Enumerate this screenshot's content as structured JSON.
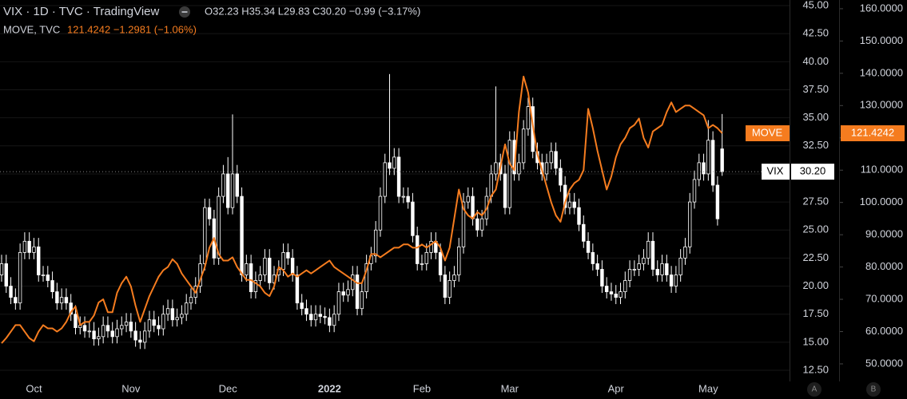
{
  "header": {
    "title": "VIX · 1D · TVC · TradingView",
    "ohlc": "O32.23 H35.34 L29.83 C30.20 −0.99 (−3.17%)",
    "second_name": "MOVE, TVC",
    "second_values": "121.4242 −1.2981 (−1.06%)"
  },
  "chart_data": {
    "type": "candlestick",
    "categories": [
      null,
      null,
      null,
      null,
      null,
      null,
      null,
      "Oct",
      null,
      null,
      null,
      null,
      null,
      null,
      null,
      null,
      null,
      null,
      null,
      null,
      null,
      null,
      null,
      null,
      null,
      null,
      null,
      null,
      "Nov",
      null,
      null,
      null,
      null,
      null,
      null,
      null,
      null,
      null,
      null,
      null,
      null,
      null,
      null,
      null,
      null,
      null,
      null,
      null,
      null,
      "Dec",
      null,
      null,
      null,
      null,
      null,
      null,
      null,
      null,
      null,
      null,
      null,
      null,
      null,
      null,
      null,
      null,
      null,
      null,
      null,
      null,
      null,
      "2022",
      null,
      null,
      null,
      null,
      null,
      null,
      null,
      null,
      null,
      null,
      null,
      null,
      null,
      null,
      null,
      null,
      null,
      null,
      null,
      "Feb",
      null,
      null,
      null,
      null,
      null,
      null,
      null,
      null,
      null,
      null,
      null,
      null,
      null,
      null,
      null,
      null,
      null,
      null,
      "Mar",
      null,
      null,
      null,
      null,
      null,
      null,
      null,
      null,
      null,
      null,
      null,
      null,
      null,
      null,
      null,
      null,
      null,
      null,
      null,
      null,
      null,
      null,
      "Apr",
      null,
      null,
      null,
      null,
      null,
      null,
      null,
      null,
      null,
      null,
      null,
      null,
      null,
      null,
      null,
      null,
      null,
      null,
      null,
      "May",
      null,
      null,
      null
    ],
    "series": [
      {
        "name": "VIX",
        "type": "candlestick",
        "color": "#ffffff",
        "last_label": "30.20",
        "open": [
          21,
          22,
          20,
          19,
          18.5,
          23,
          24,
          23,
          23.5,
          21,
          21,
          20.5,
          19.5,
          18.5,
          19,
          18.5,
          17.5,
          16.3,
          16.5,
          16,
          16,
          15.3,
          15.5,
          16.5,
          16,
          15.5,
          16.2,
          16.5,
          16.8,
          16,
          15.2,
          15,
          16,
          17,
          16.5,
          16.2,
          17.5,
          18,
          17,
          17.2,
          17.5,
          18.5,
          19,
          20,
          22,
          27,
          26,
          22.5,
          28,
          30,
          27,
          30,
          28,
          21,
          22,
          19.5,
          20.5,
          21,
          22.5,
          20.3,
          21,
          21.5,
          23,
          22.5,
          21,
          18.5,
          18,
          17.5,
          17,
          17.5,
          17.3,
          17.2,
          16.5,
          17.5,
          19.5,
          19.2,
          19.7,
          21,
          18,
          19.5,
          22,
          22.7,
          25,
          28,
          31,
          30.5,
          31.5,
          28,
          28,
          27.5,
          24.5,
          22,
          22,
          23,
          24,
          23,
          21,
          19,
          20.5,
          21,
          23.5,
          27.5,
          28,
          26,
          25,
          26,
          28,
          30,
          31,
          30,
          27,
          33,
          30,
          31,
          34,
          36,
          32,
          31,
          30,
          31,
          32,
          30.5,
          29,
          27,
          27.5,
          27,
          25.5,
          24,
          23,
          22,
          21.5,
          20,
          19.5,
          19.3,
          19,
          19.5,
          20.5,
          21.5,
          21.5,
          22,
          22.5,
          24,
          21.5,
          21,
          22,
          21,
          20,
          21,
          22.5,
          23.5,
          27.5,
          29.5,
          31,
          30,
          33,
          29,
          32.23
        ],
        "high": [
          22.8,
          22.8,
          20.8,
          19.8,
          23.8,
          24.8,
          24.8,
          24.3,
          24.3,
          21.8,
          21.8,
          21.3,
          20.3,
          19.8,
          19.8,
          19.3,
          18.3,
          17.3,
          17.3,
          16.8,
          16.8,
          16.3,
          17.3,
          17.3,
          16.8,
          17,
          17.3,
          17.6,
          17.6,
          16.8,
          16,
          16.8,
          17.8,
          17.8,
          17.3,
          18.3,
          18.8,
          18.8,
          18,
          18.3,
          19.3,
          19.8,
          20.8,
          22.8,
          27.8,
          27.8,
          26.8,
          28.8,
          30.8,
          31.5,
          35.3,
          30.8,
          28.8,
          22.8,
          22.8,
          21.3,
          21.8,
          23.3,
          23.3,
          21.8,
          22.3,
          23.8,
          23.8,
          23.3,
          21.8,
          19.3,
          18.8,
          18.3,
          18.3,
          18.3,
          18.1,
          18,
          18.3,
          20.3,
          20.3,
          20.5,
          21.8,
          21.8,
          20.3,
          22.8,
          23.5,
          25.8,
          28.8,
          31.8,
          38.9,
          32.3,
          32.3,
          28.8,
          28.8,
          28.3,
          25.3,
          22.8,
          23.8,
          24.8,
          24.8,
          23.8,
          21.8,
          21.3,
          21.8,
          24.3,
          28.3,
          28.8,
          28.8,
          26.8,
          26.8,
          28.8,
          30.8,
          37.8,
          31.8,
          30.8,
          33.8,
          33.8,
          31.8,
          34.8,
          36.8,
          36.8,
          32.8,
          31.8,
          31.8,
          32.8,
          32.8,
          31.3,
          29.8,
          28.3,
          28.3,
          27.8,
          26.3,
          24.8,
          23.8,
          22.8,
          22.3,
          20.8,
          20.3,
          20.1,
          20.3,
          21.3,
          22.3,
          22.3,
          22.8,
          23.3,
          24.8,
          24.8,
          22.3,
          22.8,
          22.8,
          21.8,
          21.8,
          23.3,
          24.3,
          28.3,
          30.3,
          31.8,
          31.8,
          34.8,
          33.8,
          29.8,
          35.34
        ],
        "low": [
          20.4,
          19.4,
          18.4,
          17.9,
          17.9,
          22.4,
          22.4,
          22.4,
          20.4,
          20.4,
          19.9,
          18.9,
          17.9,
          17.9,
          17.9,
          16.9,
          15.7,
          15.7,
          15.4,
          15.4,
          14.7,
          14.7,
          14.9,
          15.4,
          14.9,
          14.9,
          15.6,
          15.9,
          15.4,
          14.6,
          14.4,
          14.4,
          15.4,
          15.9,
          15.6,
          15.6,
          16.9,
          16.4,
          16.4,
          16.6,
          16.9,
          17.9,
          18.4,
          19.4,
          21.4,
          25.4,
          21.9,
          21.9,
          27.4,
          26.4,
          26.4,
          27.4,
          20.4,
          20.4,
          18.9,
          18.9,
          19.9,
          20.4,
          19.7,
          19.7,
          20.4,
          20.9,
          21.9,
          20.4,
          17.9,
          17.4,
          16.9,
          16.4,
          16.4,
          16.7,
          16.6,
          15.9,
          15.9,
          16.9,
          18.6,
          18.6,
          19.1,
          17.4,
          17.4,
          18.9,
          21.4,
          22.1,
          24.4,
          27.4,
          29.9,
          29.9,
          27.4,
          27.4,
          26.9,
          23.9,
          21.4,
          21.4,
          21.4,
          22.4,
          22.4,
          20.4,
          18.4,
          18.4,
          19.9,
          20.4,
          22.9,
          26.9,
          25.4,
          24.4,
          24.4,
          25.4,
          27.4,
          29.4,
          29.4,
          26.4,
          26.4,
          29.4,
          29.4,
          30.4,
          33.4,
          31.4,
          30.4,
          29.4,
          29.4,
          30.4,
          29.9,
          28.4,
          26.4,
          26.4,
          26.4,
          24.9,
          23.4,
          22.4,
          21.4,
          20.9,
          19.4,
          18.9,
          18.7,
          18.4,
          18.4,
          18.9,
          19.9,
          20.9,
          20.9,
          21.4,
          21.9,
          20.9,
          20.4,
          20.4,
          20.4,
          19.4,
          19.4,
          20.4,
          21.9,
          22.9,
          26.9,
          28.9,
          29.4,
          29.4,
          28.4,
          25.4,
          29.83
        ],
        "close": [
          22,
          20,
          19,
          18.5,
          23,
          24,
          23,
          23.5,
          21,
          21,
          20.5,
          19.5,
          18.5,
          19,
          18.5,
          17.5,
          16.3,
          16.5,
          16,
          16,
          15.3,
          15.5,
          16.5,
          16,
          15.5,
          16.2,
          16.5,
          16.8,
          16,
          15.2,
          15,
          16,
          17,
          16.5,
          16.2,
          17.5,
          18,
          17,
          17.2,
          17.5,
          18.5,
          19,
          20,
          22,
          27,
          26,
          22.5,
          28,
          30,
          27,
          30,
          28,
          21,
          22,
          19.5,
          20.5,
          21,
          22.5,
          20.3,
          21,
          21.5,
          23,
          22.5,
          21,
          18.5,
          18,
          17.5,
          17,
          17.5,
          17.3,
          17.2,
          16.5,
          17.5,
          19.5,
          19.2,
          19.7,
          21,
          18,
          19.5,
          22,
          22.7,
          25,
          28,
          31,
          30.5,
          31.5,
          28,
          28,
          27.5,
          24.5,
          22,
          22,
          23,
          24,
          23,
          21,
          19,
          20.5,
          21,
          23.5,
          27.5,
          28,
          26,
          25,
          26,
          28,
          30,
          31,
          30,
          27,
          33,
          30,
          31,
          34,
          36,
          32,
          31,
          30,
          31,
          32,
          30.5,
          29,
          27,
          27.5,
          27,
          25.5,
          24,
          23,
          22,
          21.5,
          20,
          19.5,
          19.3,
          19,
          19.5,
          20.5,
          21.5,
          21.5,
          22,
          22.5,
          24,
          21.5,
          21,
          22,
          21,
          20,
          21,
          22.5,
          23.5,
          27.5,
          29.5,
          31,
          30,
          33,
          29,
          26,
          30.2
        ]
      },
      {
        "name": "MOVE",
        "type": "line",
        "axis": "y2",
        "color": "#f57c1f",
        "last_label": "121.4242",
        "values": [
          56.4,
          58,
          60,
          62,
          62,
          60,
          58,
          57,
          60,
          62,
          61,
          61,
          60,
          61,
          63,
          66,
          67.8,
          62,
          63,
          63,
          65,
          69,
          70,
          66,
          66,
          72,
          75,
          77,
          74,
          68,
          63,
          67,
          71,
          74,
          77,
          79,
          80,
          82.4,
          81,
          78,
          76,
          74,
          72,
          76,
          80,
          86,
          89,
          84,
          82,
          82,
          83,
          80,
          78,
          76,
          76,
          75,
          74,
          72,
          71,
          74,
          80,
          79,
          77,
          78,
          77,
          78,
          79,
          78,
          79,
          80,
          81,
          82,
          80,
          79,
          78,
          77,
          76,
          75,
          75,
          79,
          84,
          84,
          83,
          84,
          85,
          86,
          86,
          87,
          87,
          86,
          86,
          87,
          86,
          87,
          88,
          86,
          82,
          86,
          95,
          104,
          98,
          96,
          95,
          97,
          96,
          98,
          102,
          104,
          111,
          118,
          112,
          110,
          128,
          139,
          134,
          124,
          115,
          110,
          105,
          100,
          96,
          94,
          100,
          104,
          106,
          107,
          110,
          129,
          123,
          116,
          110,
          104,
          108,
          114,
          118,
          120,
          123,
          124,
          126,
          120,
          117,
          122,
          123,
          124,
          128,
          131,
          128,
          129,
          130,
          130,
          129,
          128,
          127,
          123,
          124,
          123,
          121.4242
        ]
      }
    ],
    "ylim": [
      11.72,
      45.5
    ],
    "yticks": [
      {
        "value": 12.5,
        "label": "12.50"
      },
      {
        "value": 15,
        "label": "15.00"
      },
      {
        "value": 17.5,
        "label": "17.50"
      },
      {
        "value": 20,
        "label": "20.00"
      },
      {
        "value": 22.5,
        "label": "22.50"
      },
      {
        "value": 25,
        "label": "25.00"
      },
      {
        "value": 27.5,
        "label": "27.50"
      },
      {
        "value": 30,
        "label": "30.00"
      },
      {
        "value": 32.5,
        "label": "32.50"
      },
      {
        "value": 35,
        "label": "35.00"
      },
      {
        "value": 37.5,
        "label": "37.50"
      },
      {
        "value": 40,
        "label": "40.00"
      },
      {
        "value": 42.5,
        "label": "42.50"
      },
      {
        "value": 45,
        "label": "45.00"
      }
    ],
    "y2lim": [
      45.3,
      162.7
    ],
    "y2ticks": [
      {
        "value": 50,
        "label": "50.0000"
      },
      {
        "value": 60,
        "label": "60.0000"
      },
      {
        "value": 70,
        "label": "70.0000"
      },
      {
        "value": 80,
        "label": "80.0000"
      },
      {
        "value": 90,
        "label": "90.0000"
      },
      {
        "value": 100,
        "label": "100.0000"
      },
      {
        "value": 110,
        "label": "110.0000"
      },
      {
        "value": 120,
        "label": "120.0000"
      },
      {
        "value": 130,
        "label": "130.0000"
      },
      {
        "value": 140,
        "label": "140.0000"
      },
      {
        "value": 150,
        "label": "150.0000"
      },
      {
        "value": 160,
        "label": "160.0000"
      }
    ],
    "grid": true
  },
  "buttons": [
    "A",
    "B"
  ]
}
